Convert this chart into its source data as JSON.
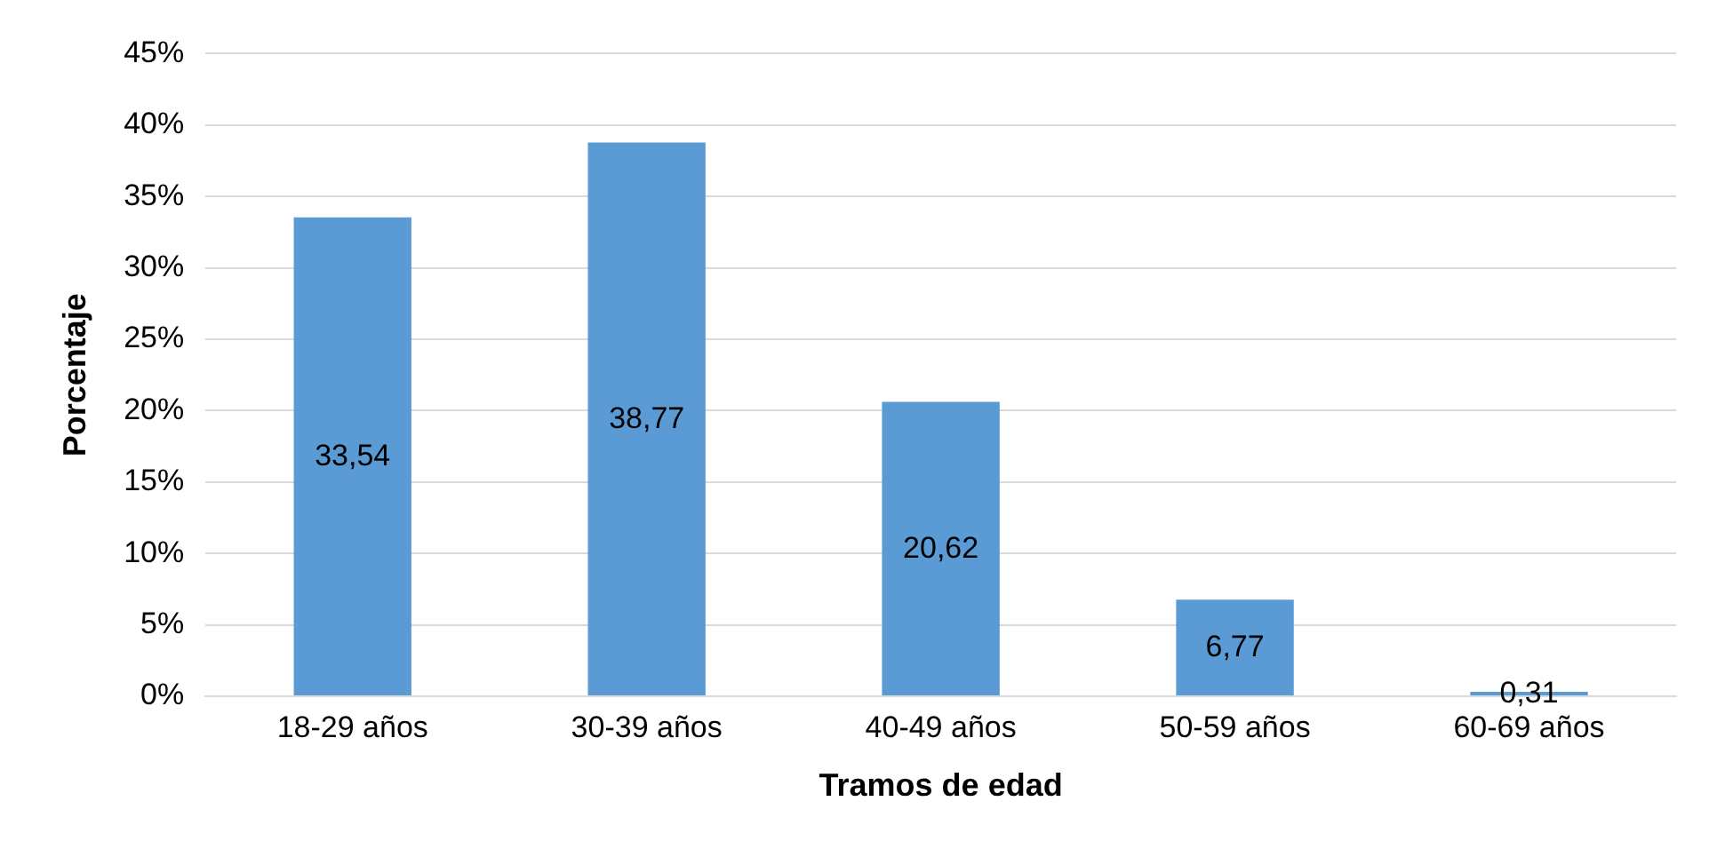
{
  "chart_data": {
    "type": "bar",
    "xlabel": "Tramos de edad",
    "ylabel": "Porcentaje",
    "categories": [
      "18-29 años",
      "30-39 años",
      "40-49 años",
      "50-59 años",
      "60-69 años"
    ],
    "values": [
      33.54,
      38.77,
      20.62,
      6.77,
      0.31
    ],
    "value_labels": [
      "33,54",
      "38,77",
      "20,62",
      "6,77",
      "0,31"
    ],
    "color": "#5b9bd5",
    "ylim": [
      0,
      45
    ],
    "yticks": [
      {
        "value": 0,
        "label": "0%"
      },
      {
        "value": 5,
        "label": "5%"
      },
      {
        "value": 10,
        "label": "10%"
      },
      {
        "value": 15,
        "label": "15%"
      },
      {
        "value": 20,
        "label": "20%"
      },
      {
        "value": 25,
        "label": "25%"
      },
      {
        "value": 30,
        "label": "30%"
      },
      {
        "value": 35,
        "label": "35%"
      },
      {
        "value": 40,
        "label": "40%"
      },
      {
        "value": 45,
        "label": "45%"
      }
    ],
    "grid": "y"
  }
}
